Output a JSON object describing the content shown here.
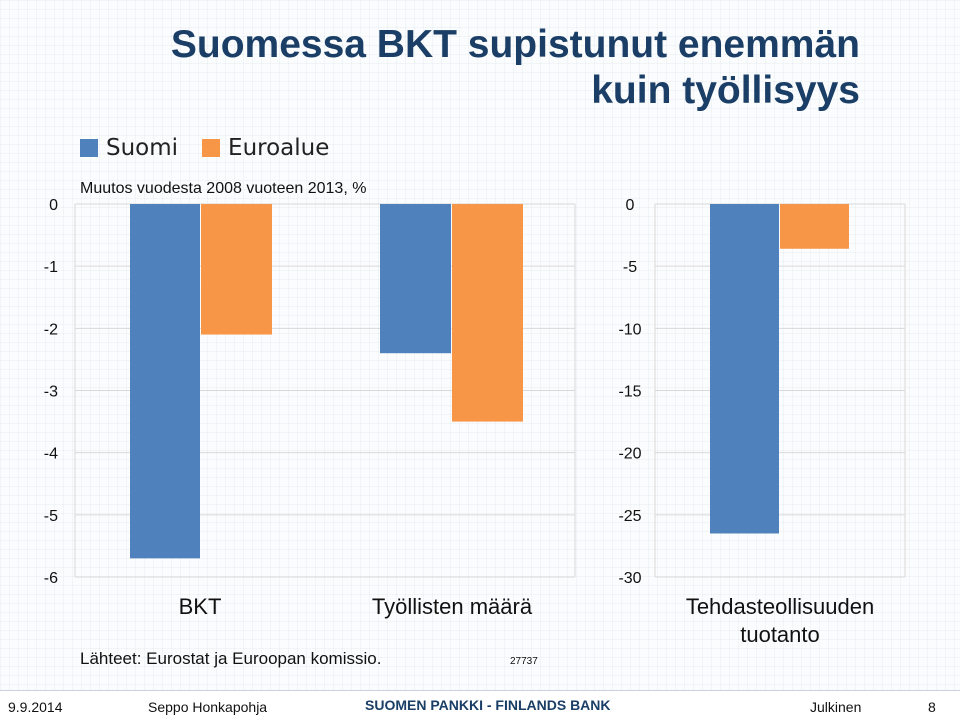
{
  "title_line1": "Suomessa BKT supistunut enemmän",
  "title_line2": "kuin työllisyys",
  "legend": [
    {
      "label": "Suomi",
      "color": "#4f81bd"
    },
    {
      "label": "Euroalue",
      "color": "#f79646"
    }
  ],
  "subtitle": "Muutos vuodesta 2008 vuoteen 2013, %",
  "source": "Lähteet: Eurostat ja Euroopan komissio.",
  "code": "27737",
  "footer": {
    "date": "9.9.2014",
    "author": "Seppo Honkapohja",
    "bank": "SUOMEN PANKKI - FINLANDS BANK",
    "classification": "Julkinen",
    "page": "8"
  },
  "chart_data": [
    {
      "type": "bar",
      "categories": [
        "BKT",
        "Työllisten määrä"
      ],
      "series": [
        {
          "name": "Suomi",
          "values": [
            -5.7,
            -2.4
          ]
        },
        {
          "name": "Euroalue",
          "values": [
            -2.1,
            -3.5
          ]
        }
      ],
      "ylim": [
        -6,
        0
      ],
      "yticks": [
        "0",
        "-1",
        "-2",
        "-3",
        "-4",
        "-5",
        "-6"
      ],
      "grid": true
    },
    {
      "type": "bar",
      "categories": [
        "Tehdasteollisuuden tuotanto"
      ],
      "series": [
        {
          "name": "Suomi",
          "values": [
            -26.5
          ]
        },
        {
          "name": "Euroalue",
          "values": [
            -3.6
          ]
        }
      ],
      "ylim": [
        -30,
        0
      ],
      "yticks": [
        "0",
        "-5",
        "-10",
        "-15",
        "-20",
        "-25",
        "-30"
      ],
      "grid": true
    }
  ]
}
